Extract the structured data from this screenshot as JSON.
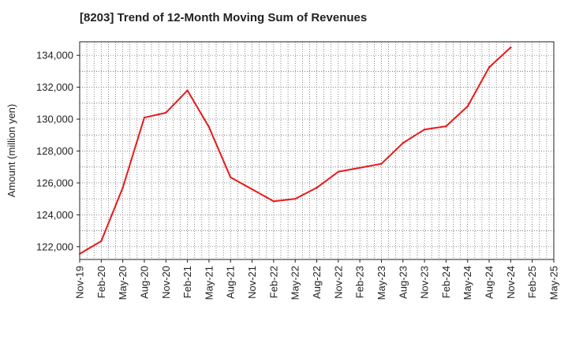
{
  "chart_data": {
    "type": "line",
    "title": "[8203]  Trend of 12-Month Moving Sum of Revenues",
    "xlabel": "",
    "ylabel": "Amount (million yen)",
    "categories": [
      "Nov-19",
      "Feb-20",
      "May-20",
      "Aug-20",
      "Nov-20",
      "Feb-21",
      "May-21",
      "Aug-21",
      "Nov-21",
      "Feb-22",
      "May-22",
      "Aug-22",
      "Nov-22",
      "Feb-23",
      "May-23",
      "Aug-23",
      "Nov-23",
      "Feb-24",
      "May-24",
      "Aug-24",
      "Nov-24",
      "Feb-25",
      "May-25"
    ],
    "series": [
      {
        "color": "#e8191a",
        "values": [
          121550,
          122350,
          125700,
          130100,
          130400,
          131800,
          129500,
          126350,
          125600,
          124850,
          125000,
          125700,
          126700,
          126950,
          127200,
          128500,
          129350,
          129550,
          130800,
          133250,
          134500,
          null,
          null
        ]
      }
    ],
    "ylim": [
      121200,
      134850
    ],
    "yticks": [
      122000,
      124000,
      126000,
      128000,
      130000,
      132000,
      134000
    ],
    "ytick_labels": [
      "122,000",
      "124,000",
      "126,000",
      "128,000",
      "130,000",
      "132,000",
      "134,000"
    ],
    "grid": true,
    "legend": "none"
  }
}
